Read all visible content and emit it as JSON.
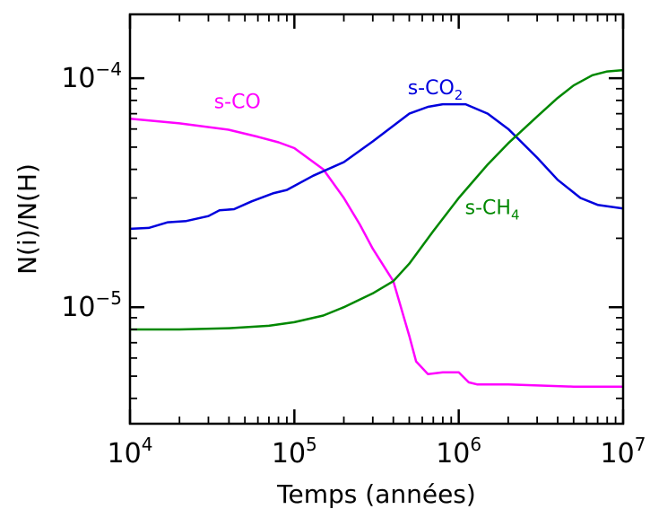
{
  "chart_data": {
    "type": "line",
    "xlabel": "Temps (années)",
    "ylabel": "N(i)/N(H)",
    "xscale": "log",
    "yscale": "log",
    "xlim": [
      10000,
      10000000
    ],
    "ylim": [
      3.1e-06,
      0.00019
    ],
    "grid": false,
    "x_ticks": [
      {
        "value": 10000,
        "base": "10",
        "exp": "4"
      },
      {
        "value": 100000,
        "base": "10",
        "exp": "5"
      },
      {
        "value": 1000000,
        "base": "10",
        "exp": "6"
      },
      {
        "value": 10000000,
        "base": "10",
        "exp": "7"
      }
    ],
    "y_ticks": [
      {
        "value": 1e-05,
        "base": "10",
        "exp": "−5"
      },
      {
        "value": 0.0001,
        "base": "10",
        "exp": "−4"
      }
    ],
    "series": [
      {
        "name": "s-CO",
        "color": "#ff00ff",
        "label": {
          "prefix": "s-CO",
          "sub": ""
        },
        "label_at": [
          45000,
          7.4e-05
        ],
        "points": [
          [
            10000,
            6.65e-05
          ],
          [
            20000,
            6.35e-05
          ],
          [
            40000,
            5.95e-05
          ],
          [
            60000,
            5.55e-05
          ],
          [
            80000,
            5.25e-05
          ],
          [
            100000,
            4.95e-05
          ],
          [
            150000,
            4e-05
          ],
          [
            200000,
            3e-05
          ],
          [
            250000,
            2.3e-05
          ],
          [
            300000,
            1.8e-05
          ],
          [
            400000,
            1.3e-05
          ],
          [
            500000,
            7.5e-06
          ],
          [
            550000,
            5.8e-06
          ],
          [
            650000,
            5.1e-06
          ],
          [
            800000,
            5.2e-06
          ],
          [
            1000000,
            5.2e-06
          ],
          [
            1150000,
            4.7e-06
          ],
          [
            1300000,
            4.6e-06
          ],
          [
            2000000,
            4.6e-06
          ],
          [
            5000000,
            4.5e-06
          ],
          [
            10000000,
            4.5e-06
          ]
        ]
      },
      {
        "name": "s-CO2",
        "color": "#0000dd",
        "label": {
          "prefix": "s-CO",
          "sub": "2"
        },
        "label_at": [
          720000,
          8.5e-05
        ],
        "points": [
          [
            10000,
            2.2e-05
          ],
          [
            13000,
            2.22e-05
          ],
          [
            17000,
            2.35e-05
          ],
          [
            22000,
            2.38e-05
          ],
          [
            30000,
            2.5e-05
          ],
          [
            35000,
            2.65e-05
          ],
          [
            43000,
            2.68e-05
          ],
          [
            55000,
            2.9e-05
          ],
          [
            75000,
            3.15e-05
          ],
          [
            90000,
            3.25e-05
          ],
          [
            130000,
            3.75e-05
          ],
          [
            200000,
            4.3e-05
          ],
          [
            300000,
            5.3e-05
          ],
          [
            400000,
            6.2e-05
          ],
          [
            500000,
            7e-05
          ],
          [
            650000,
            7.5e-05
          ],
          [
            800000,
            7.7e-05
          ],
          [
            1100000,
            7.7e-05
          ],
          [
            1500000,
            7e-05
          ],
          [
            2000000,
            6e-05
          ],
          [
            3000000,
            4.5e-05
          ],
          [
            4000000,
            3.6e-05
          ],
          [
            5500000,
            3e-05
          ],
          [
            7000000,
            2.8e-05
          ],
          [
            10000000,
            2.7e-05
          ]
        ]
      },
      {
        "name": "s-CH4",
        "color": "#008800",
        "label": {
          "prefix": "s-CH",
          "sub": "4"
        },
        "label_at": [
          1600000,
          2.55e-05
        ],
        "points": [
          [
            10000,
            8e-06
          ],
          [
            20000,
            8e-06
          ],
          [
            40000,
            8.1e-06
          ],
          [
            70000,
            8.3e-06
          ],
          [
            100000,
            8.6e-06
          ],
          [
            150000,
            9.2e-06
          ],
          [
            200000,
            1e-05
          ],
          [
            300000,
            1.15e-05
          ],
          [
            400000,
            1.3e-05
          ],
          [
            500000,
            1.55e-05
          ],
          [
            700000,
            2.15e-05
          ],
          [
            1000000,
            3e-05
          ],
          [
            1500000,
            4.2e-05
          ],
          [
            2000000,
            5.2e-05
          ],
          [
            3000000,
            6.8e-05
          ],
          [
            4000000,
            8.2e-05
          ],
          [
            5000000,
            9.3e-05
          ],
          [
            6500000,
            0.000103
          ],
          [
            8000000,
            0.000107
          ],
          [
            10000000,
            0.0001085
          ]
        ]
      }
    ]
  }
}
